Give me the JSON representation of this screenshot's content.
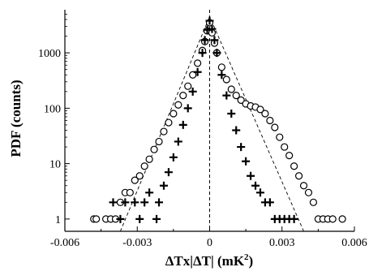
{
  "chart_data": {
    "type": "scatter",
    "title": "",
    "xlabel": "ΔTx|ΔT| (mK",
    "xlabel_sup": "2",
    "xlabel_close": ")",
    "ylabel": "PDF (counts)",
    "xlim": [
      -0.006,
      0.006
    ],
    "ylim": [
      0.6,
      6000
    ],
    "yscale": "log",
    "xticks": [
      {
        "value": -0.006,
        "label": "-0.006"
      },
      {
        "value": -0.003,
        "label": "-0.003"
      },
      {
        "value": 0,
        "label": "0"
      },
      {
        "value": 0.003,
        "label": "0.003"
      },
      {
        "value": 0.006,
        "label": "0.006"
      }
    ],
    "yticks": [
      {
        "value": 1,
        "label": "1"
      },
      {
        "value": 10,
        "label": "10"
      },
      {
        "value": 100,
        "label": "100"
      },
      {
        "value": 1000,
        "label": "1000"
      }
    ],
    "vertical_reference_x": 0,
    "series": [
      {
        "marker": "circle",
        "points": [
          [
            -0.0048,
            1
          ],
          [
            -0.0047,
            1
          ],
          [
            -0.0043,
            1
          ],
          [
            -0.0041,
            1
          ],
          [
            -0.0039,
            1
          ],
          [
            -0.0037,
            2
          ],
          [
            -0.0035,
            3
          ],
          [
            -0.0033,
            3
          ],
          [
            -0.0031,
            5
          ],
          [
            -0.0029,
            6
          ],
          [
            -0.0027,
            9
          ],
          [
            -0.0025,
            12
          ],
          [
            -0.0023,
            18
          ],
          [
            -0.0021,
            25
          ],
          [
            -0.0019,
            38
          ],
          [
            -0.0017,
            55
          ],
          [
            -0.0015,
            80
          ],
          [
            -0.0013,
            115
          ],
          [
            -0.0011,
            170
          ],
          [
            -0.0009,
            250
          ],
          [
            -0.0007,
            400
          ],
          [
            -0.0005,
            650
          ],
          [
            -0.0003,
            1100
          ],
          [
            -0.0002,
            1600
          ],
          [
            -0.0001,
            2500
          ],
          [
            0,
            3500
          ],
          [
            0.0001,
            2300
          ],
          [
            0.0002,
            1500
          ],
          [
            0.0003,
            1000
          ],
          [
            0.0005,
            550
          ],
          [
            0.0007,
            330
          ],
          [
            0.0009,
            220
          ],
          [
            0.0011,
            170
          ],
          [
            0.0013,
            140
          ],
          [
            0.0015,
            120
          ],
          [
            0.0017,
            110
          ],
          [
            0.0019,
            105
          ],
          [
            0.0021,
            95
          ],
          [
            0.0023,
            80
          ],
          [
            0.0025,
            60
          ],
          [
            0.0027,
            45
          ],
          [
            0.0029,
            30
          ],
          [
            0.0031,
            20
          ],
          [
            0.0033,
            14
          ],
          [
            0.0035,
            9
          ],
          [
            0.0037,
            6
          ],
          [
            0.0039,
            4
          ],
          [
            0.0041,
            3
          ],
          [
            0.0043,
            2
          ],
          [
            0.0045,
            1
          ],
          [
            0.0047,
            1
          ],
          [
            0.0049,
            1
          ],
          [
            0.0051,
            1
          ],
          [
            0.0055,
            1
          ]
        ]
      },
      {
        "marker": "cross",
        "points": [
          [
            -0.004,
            2
          ],
          [
            -0.0037,
            1
          ],
          [
            -0.0035,
            2
          ],
          [
            -0.0031,
            2
          ],
          [
            -0.0029,
            1
          ],
          [
            -0.0027,
            2
          ],
          [
            -0.0025,
            3
          ],
          [
            -0.0022,
            1
          ],
          [
            -0.0021,
            2
          ],
          [
            -0.0019,
            4
          ],
          [
            -0.0017,
            7
          ],
          [
            -0.0015,
            13
          ],
          [
            -0.0013,
            25
          ],
          [
            -0.0011,
            50
          ],
          [
            -0.0009,
            100
          ],
          [
            -0.0007,
            200
          ],
          [
            -0.0005,
            450
          ],
          [
            -0.0003,
            1000
          ],
          [
            -0.0002,
            1700
          ],
          [
            -0.0001,
            2600
          ],
          [
            0,
            3800
          ],
          [
            0.0001,
            2700
          ],
          [
            0.0002,
            1700
          ],
          [
            0.0003,
            1000
          ],
          [
            0.0005,
            400
          ],
          [
            0.0007,
            170
          ],
          [
            0.0009,
            80
          ],
          [
            0.0011,
            40
          ],
          [
            0.0013,
            20
          ],
          [
            0.0015,
            11
          ],
          [
            0.0017,
            6
          ],
          [
            0.0019,
            4
          ],
          [
            0.0021,
            3
          ],
          [
            0.0023,
            2
          ],
          [
            0.0025,
            2
          ],
          [
            0.0027,
            1
          ],
          [
            0.0029,
            1
          ],
          [
            0.0031,
            1
          ],
          [
            0.0033,
            1
          ],
          [
            0.0035,
            1
          ]
        ]
      }
    ],
    "fit_lines": [
      {
        "style": "dashed",
        "points": [
          [
            -0.0037,
            0.6
          ],
          [
            0,
            4500
          ]
        ]
      },
      {
        "style": "dashed",
        "points": [
          [
            0.0039,
            0.6
          ],
          [
            0,
            4500
          ]
        ]
      }
    ]
  }
}
